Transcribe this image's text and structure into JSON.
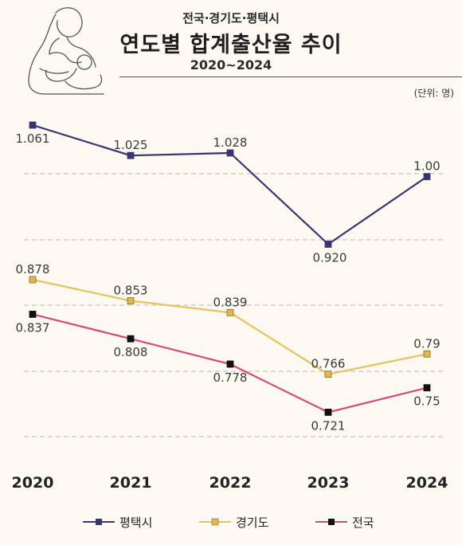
{
  "header": {
    "supertitle": "전국·경기도·평택시",
    "title": "연도별 합계출산율 추이",
    "subtitle": "2020~2024",
    "unit": "(단위: 명)"
  },
  "chart_data": {
    "type": "line",
    "categories": [
      "2020",
      "2021",
      "2022",
      "2023",
      "2024"
    ],
    "series": [
      {
        "name": "평택시",
        "values": [
          1.061,
          1.025,
          1.028,
          0.92,
          1.0
        ],
        "labels": [
          "1.061",
          "1.025",
          "1.028",
          "0.920",
          "1.00"
        ],
        "color": "#3a3470"
      },
      {
        "name": "경기도",
        "values": [
          0.878,
          0.853,
          0.839,
          0.766,
          0.79
        ],
        "labels": [
          "0.878",
          "0.853",
          "0.839",
          "0.766",
          "0.79"
        ],
        "color": "#e8c25a"
      },
      {
        "name": "전국",
        "values": [
          0.837,
          0.808,
          0.778,
          0.721,
          0.75
        ],
        "labels": [
          "0.837",
          "0.808",
          "0.778",
          "0.721",
          "0.75"
        ],
        "color": "#d84a7c"
      }
    ],
    "grid": true,
    "legend": "bottom"
  },
  "colors": {
    "background": "#fcf8f2",
    "gridline": "#bdbdbd"
  }
}
